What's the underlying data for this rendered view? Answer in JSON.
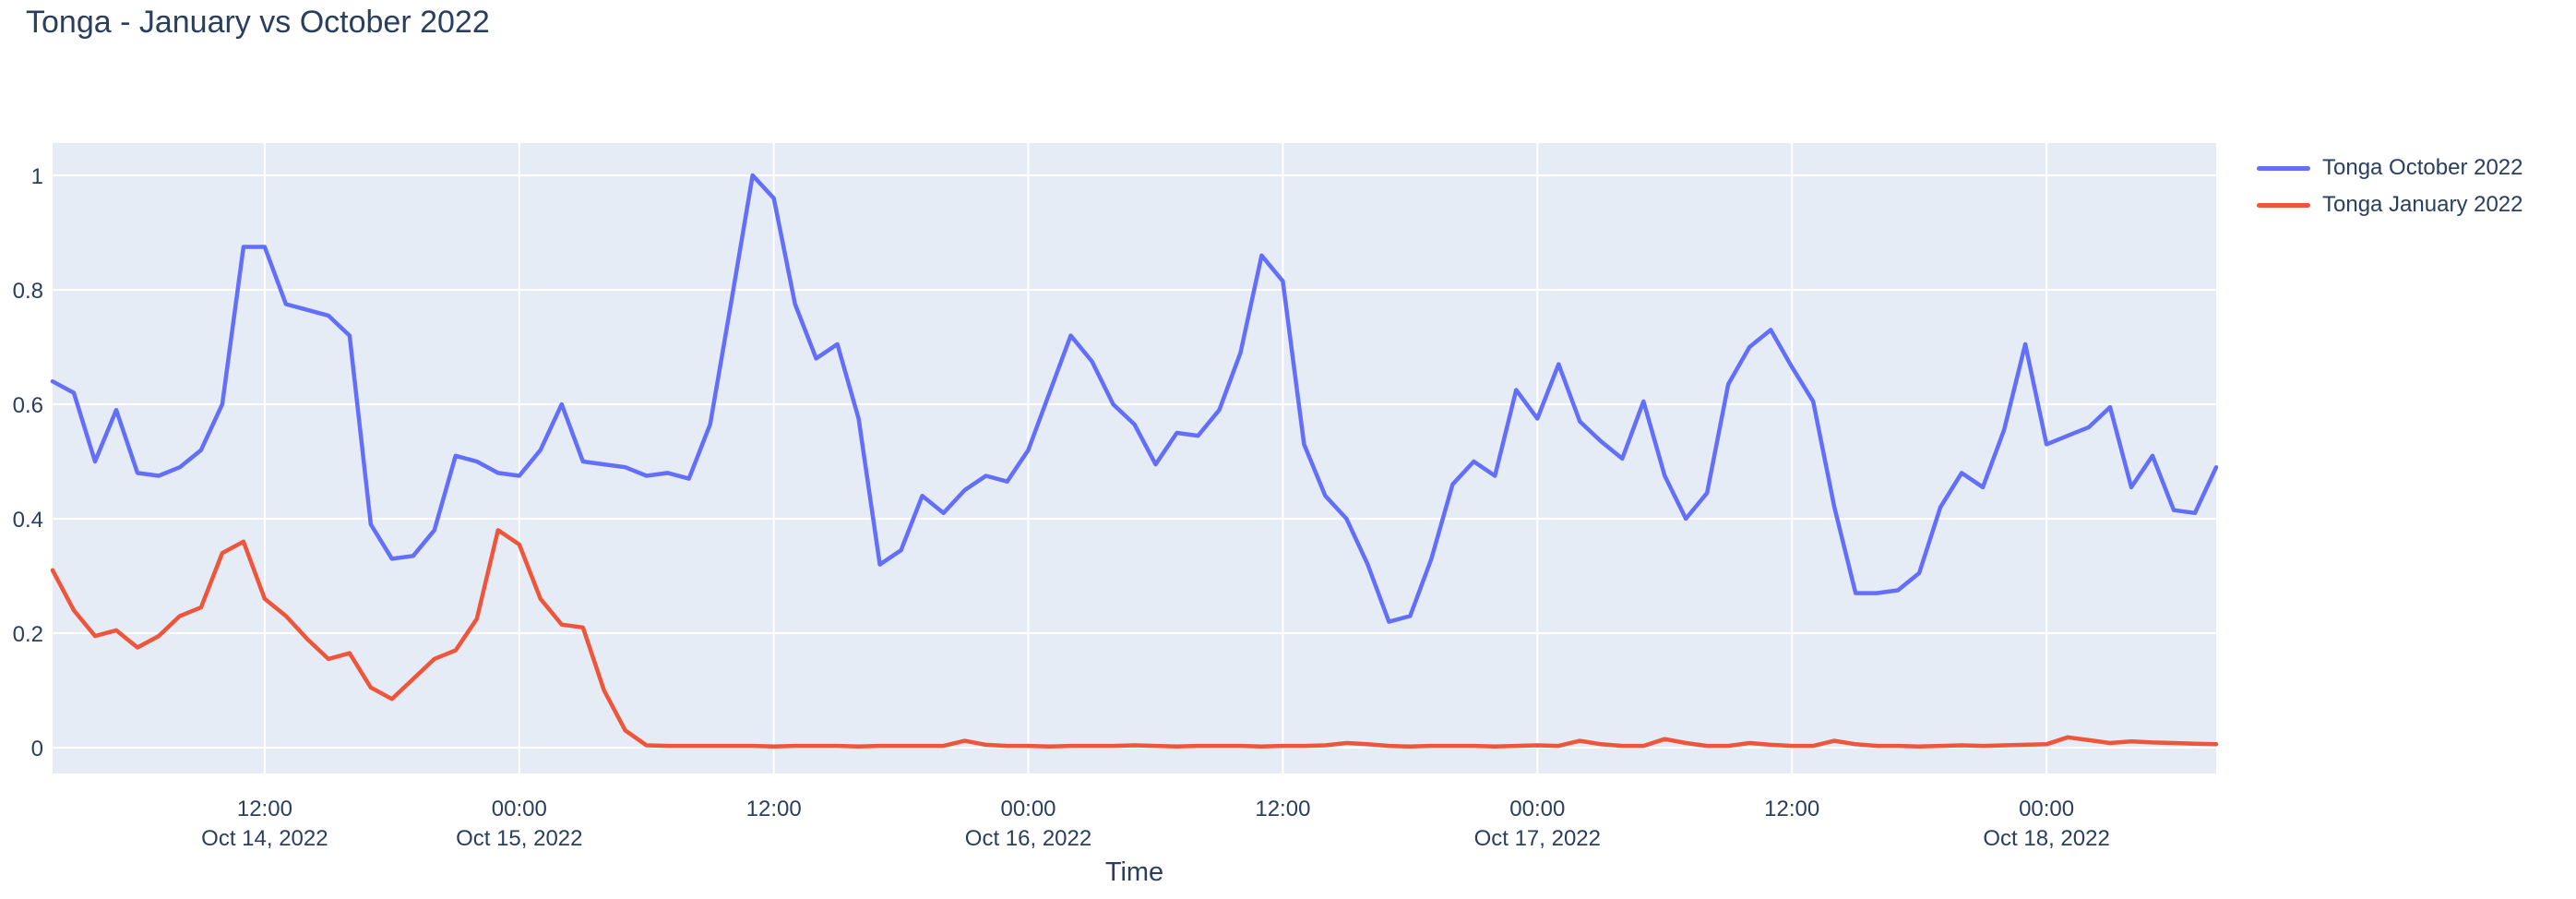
{
  "chart_data": {
    "type": "line",
    "title": "Tonga - January vs October 2022",
    "xlabel": "Time",
    "ylabel": "",
    "ylim": [
      0,
      1
    ],
    "y_ticks": [
      0,
      0.2,
      0.4,
      0.6,
      0.8,
      1
    ],
    "x_range_hours": [
      0,
      102
    ],
    "x_ticks": [
      {
        "hour": 10,
        "time": "12:00",
        "date": "Oct 14, 2022"
      },
      {
        "hour": 22,
        "time": "00:00",
        "date": "Oct 15, 2022"
      },
      {
        "hour": 34,
        "time": "12:00",
        "date": ""
      },
      {
        "hour": 46,
        "time": "00:00",
        "date": "Oct 16, 2022"
      },
      {
        "hour": 58,
        "time": "12:00",
        "date": ""
      },
      {
        "hour": 70,
        "time": "00:00",
        "date": "Oct 17, 2022"
      },
      {
        "hour": 82,
        "time": "12:00",
        "date": ""
      },
      {
        "hour": 94,
        "time": "00:00",
        "date": "Oct 18, 2022"
      }
    ],
    "grid": true,
    "plot_bg": "#e5ecf6",
    "grid_color": "#ffffff",
    "text_color": "#2a3f5f",
    "legend_position": "outside-right-top",
    "series": [
      {
        "name": "Tonga October 2022",
        "color": "#636efa",
        "values": [
          0.64,
          0.62,
          0.5,
          0.59,
          0.48,
          0.475,
          0.49,
          0.52,
          0.6,
          0.875,
          0.875,
          0.775,
          0.765,
          0.755,
          0.72,
          0.39,
          0.33,
          0.335,
          0.38,
          0.51,
          0.5,
          0.48,
          0.475,
          0.52,
          0.6,
          0.5,
          0.495,
          0.49,
          0.475,
          0.48,
          0.47,
          0.565,
          0.78,
          1.0,
          0.96,
          0.775,
          0.68,
          0.705,
          0.575,
          0.32,
          0.345,
          0.44,
          0.41,
          0.45,
          0.475,
          0.465,
          0.52,
          0.62,
          0.72,
          0.675,
          0.6,
          0.565,
          0.495,
          0.55,
          0.545,
          0.59,
          0.69,
          0.86,
          0.815,
          0.53,
          0.44,
          0.4,
          0.32,
          0.22,
          0.23,
          0.33,
          0.46,
          0.5,
          0.475,
          0.625,
          0.575,
          0.67,
          0.57,
          0.535,
          0.505,
          0.605,
          0.475,
          0.4,
          0.445,
          0.635,
          0.7,
          0.73,
          0.665,
          0.605,
          0.42,
          0.27,
          0.27,
          0.275,
          0.305,
          0.42,
          0.48,
          0.455,
          0.555,
          0.705,
          0.53,
          0.545,
          0.56,
          0.595,
          0.455,
          0.51,
          0.415,
          0.41,
          0.49
        ]
      },
      {
        "name": "Tonga January 2022",
        "color": "#ef553b",
        "values": [
          0.31,
          0.24,
          0.195,
          0.205,
          0.175,
          0.195,
          0.23,
          0.245,
          0.34,
          0.36,
          0.26,
          0.23,
          0.19,
          0.155,
          0.165,
          0.105,
          0.085,
          0.12,
          0.155,
          0.17,
          0.225,
          0.38,
          0.355,
          0.26,
          0.215,
          0.21,
          0.1,
          0.03,
          0.004,
          0.003,
          0.003,
          0.003,
          0.003,
          0.003,
          0.002,
          0.003,
          0.003,
          0.003,
          0.002,
          0.003,
          0.003,
          0.003,
          0.003,
          0.012,
          0.005,
          0.003,
          0.003,
          0.002,
          0.003,
          0.003,
          0.003,
          0.004,
          0.003,
          0.002,
          0.003,
          0.003,
          0.003,
          0.002,
          0.003,
          0.003,
          0.004,
          0.008,
          0.006,
          0.003,
          0.002,
          0.003,
          0.003,
          0.003,
          0.002,
          0.003,
          0.004,
          0.003,
          0.012,
          0.006,
          0.003,
          0.003,
          0.015,
          0.008,
          0.003,
          0.003,
          0.008,
          0.005,
          0.003,
          0.003,
          0.012,
          0.006,
          0.003,
          0.003,
          0.002,
          0.003,
          0.004,
          0.003,
          0.004,
          0.005,
          0.006,
          0.018,
          0.013,
          0.008,
          0.011,
          0.009,
          0.008,
          0.007,
          0.006
        ]
      }
    ]
  }
}
